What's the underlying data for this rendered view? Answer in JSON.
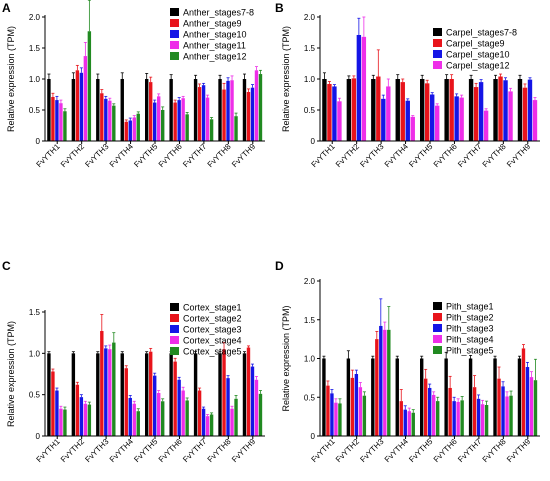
{
  "figure": {
    "categories": [
      "FvYTH1",
      "FvYTH2",
      "FvYTH3",
      "FvYTH4",
      "FvYTH5",
      "FvYTH6",
      "FvYTH7",
      "FvYTH8",
      "FvYTH9"
    ],
    "colors": [
      "#000000",
      "#e8141b",
      "#1515e6",
      "#ee2ee8",
      "#218a21"
    ]
  },
  "chart_data": [
    {
      "panel": "A",
      "type": "bar",
      "ylabel": "Relative expression (TPM)",
      "ylim": [
        0,
        2.0
      ],
      "yticks": [
        0,
        0.5,
        1.0,
        1.5,
        2.0
      ],
      "ytick_labels": [
        "0",
        "0.5",
        "1.0",
        "1.5",
        "2.0"
      ],
      "legend": "top-right",
      "categories": [
        "FvYTH1",
        "FvYTH2",
        "FvYTH3",
        "FvYTH4",
        "FvYTH5",
        "FvYTH6",
        "FvYTH7",
        "FvYTH8",
        "FvYTH9"
      ],
      "series": [
        {
          "name": "Anther_stages7-8",
          "values": [
            1.0,
            1.0,
            1.0,
            1.0,
            1.0,
            1.0,
            1.0,
            1.0,
            1.0
          ],
          "errors": [
            0.08,
            0.1,
            0.08,
            0.1,
            0.09,
            0.07,
            0.06,
            0.06,
            0.08
          ]
        },
        {
          "name": "Anther_stage9",
          "values": [
            0.71,
            1.14,
            0.77,
            0.31,
            0.95,
            0.62,
            0.87,
            0.83,
            0.79
          ],
          "errors": [
            0.06,
            0.08,
            0.06,
            0.03,
            0.08,
            0.04,
            0.05,
            0.1,
            0.05
          ]
        },
        {
          "name": "Anther_stage10",
          "values": [
            0.66,
            1.1,
            0.68,
            0.33,
            0.62,
            0.66,
            0.9,
            0.97,
            0.86
          ],
          "errors": [
            0.06,
            0.08,
            0.04,
            0.04,
            0.04,
            0.04,
            0.03,
            0.05,
            0.05
          ]
        },
        {
          "name": "Anther_stage11",
          "values": [
            0.61,
            1.37,
            0.65,
            0.38,
            0.72,
            0.69,
            0.7,
            0.98,
            1.14
          ],
          "errors": [
            0.05,
            0.22,
            0.04,
            0.03,
            0.04,
            0.03,
            0.04,
            0.07,
            0.06
          ]
        },
        {
          "name": "Anther_stage12",
          "values": [
            0.48,
            1.77,
            0.57,
            0.44,
            0.5,
            0.43,
            0.35,
            0.4,
            1.08
          ],
          "errors": [
            0.04,
            0.5,
            0.03,
            0.03,
            0.05,
            0.03,
            0.03,
            0.05,
            0.06
          ]
        }
      ]
    },
    {
      "panel": "B",
      "type": "bar",
      "ylabel": "Relative expression (TPM)",
      "ylim": [
        0,
        2.0
      ],
      "yticks": [
        0,
        0.5,
        1.0,
        1.5,
        2.0
      ],
      "ytick_labels": [
        "0",
        "0.5",
        "1.0",
        "1.5",
        "2.0"
      ],
      "legend": "top-right",
      "categories": [
        "FvYTH1",
        "FvYTH2",
        "FvYTH3",
        "FvYTH4",
        "FvYTH5",
        "FvYTH6",
        "FvYTH7",
        "FvYTH8",
        "FvYTH9"
      ],
      "series": [
        {
          "name": "Carpel_stages7-8",
          "values": [
            1.0,
            1.0,
            1.0,
            1.0,
            1.0,
            1.0,
            1.0,
            1.0,
            1.0
          ],
          "errors": [
            0.1,
            0.05,
            0.06,
            0.07,
            0.06,
            0.07,
            0.06,
            0.06,
            0.06
          ]
        },
        {
          "name": "Carpel_stage9",
          "values": [
            0.92,
            1.01,
            1.04,
            0.95,
            0.93,
            1.0,
            0.87,
            1.04,
            0.86
          ],
          "errors": [
            0.04,
            0.04,
            0.43,
            0.05,
            0.05,
            0.07,
            0.06,
            0.04,
            0.06
          ]
        },
        {
          "name": "Carpel_stage10",
          "values": [
            0.88,
            1.71,
            0.68,
            0.65,
            0.75,
            0.72,
            0.95,
            0.98,
            0.99
          ],
          "errors": [
            0.03,
            0.27,
            0.06,
            0.03,
            0.03,
            0.04,
            0.04,
            0.04,
            0.03
          ]
        },
        {
          "name": "Carpel_stage12",
          "values": [
            0.64,
            1.68,
            0.88,
            0.39,
            0.57,
            0.7,
            0.49,
            0.8,
            0.66
          ],
          "errors": [
            0.05,
            0.32,
            0.12,
            0.02,
            0.03,
            0.04,
            0.03,
            0.05,
            0.04
          ]
        }
      ]
    },
    {
      "panel": "C",
      "type": "bar",
      "ylabel": "Relative expression (TPM)",
      "ylim": [
        0,
        1.5
      ],
      "yticks": [
        0,
        0.5,
        1.0,
        1.5
      ],
      "ytick_labels": [
        "0",
        "0.5",
        "1.0",
        "1.5"
      ],
      "legend": "top-right",
      "categories": [
        "FvYTH1",
        "FvYTH2",
        "FvYTH3",
        "FvYTH4",
        "FvYTH5",
        "FvYTH6",
        "FvYTH7",
        "FvYTH8",
        "FvYTH9"
      ],
      "series": [
        {
          "name": "Cortex_stage1",
          "values": [
            1.0,
            1.0,
            1.0,
            1.0,
            1.0,
            1.0,
            1.0,
            1.0,
            1.0
          ],
          "errors": [
            0.02,
            0.02,
            0.02,
            0.02,
            0.02,
            0.02,
            0.02,
            0.02,
            0.02
          ]
        },
        {
          "name": "Cortex_stage2",
          "values": [
            0.78,
            0.62,
            1.27,
            0.82,
            1.02,
            0.9,
            0.55,
            1.05,
            1.07
          ],
          "errors": [
            0.03,
            0.03,
            0.2,
            0.03,
            0.04,
            0.04,
            0.03,
            0.08,
            0.02
          ]
        },
        {
          "name": "Cortex_stage3",
          "values": [
            0.55,
            0.47,
            1.06,
            0.46,
            0.73,
            0.68,
            0.33,
            0.7,
            0.84
          ],
          "errors": [
            0.03,
            0.03,
            0.03,
            0.03,
            0.03,
            0.03,
            0.02,
            0.03,
            0.03
          ]
        },
        {
          "name": "Cortex_stage4",
          "values": [
            0.33,
            0.39,
            1.05,
            0.39,
            0.52,
            0.55,
            0.24,
            0.33,
            0.68
          ],
          "errors": [
            0.03,
            0.03,
            0.05,
            0.03,
            0.03,
            0.04,
            0.02,
            0.03,
            0.04
          ]
        },
        {
          "name": "Cortex_stage5",
          "values": [
            0.32,
            0.38,
            1.13,
            0.3,
            0.42,
            0.43,
            0.26,
            0.45,
            0.51
          ],
          "errors": [
            0.03,
            0.03,
            0.12,
            0.03,
            0.03,
            0.03,
            0.02,
            0.04,
            0.04
          ]
        }
      ]
    },
    {
      "panel": "D",
      "type": "bar",
      "ylabel": "Relative expression (TPM)",
      "ylim": [
        0,
        2.0
      ],
      "yticks": [
        0,
        0.5,
        1.0,
        1.5,
        2.0
      ],
      "ytick_labels": [
        "0",
        "0.5",
        "1.0",
        "1.5",
        "2.0"
      ],
      "legend": "top-right",
      "categories": [
        "FvYTH1",
        "FvYTH2",
        "FvYTH3",
        "FvYTH4",
        "FvYTH5",
        "FvYTH6",
        "FvYTH7",
        "FvYTH8",
        "FvYTH9"
      ],
      "series": [
        {
          "name": "Pith_stage1",
          "values": [
            1.0,
            1.0,
            1.0,
            1.0,
            1.0,
            1.0,
            1.0,
            1.0,
            1.0
          ],
          "errors": [
            0.03,
            0.1,
            0.03,
            0.03,
            0.03,
            0.08,
            0.04,
            0.03,
            0.03
          ]
        },
        {
          "name": "Pith_stage2",
          "values": [
            0.65,
            0.75,
            1.25,
            0.45,
            0.74,
            0.62,
            0.63,
            0.74,
            1.13
          ],
          "errors": [
            0.06,
            0.1,
            0.1,
            0.15,
            0.12,
            0.15,
            0.15,
            0.15,
            0.05
          ]
        },
        {
          "name": "Pith_stage3",
          "values": [
            0.55,
            0.8,
            1.42,
            0.34,
            0.62,
            0.45,
            0.48,
            0.64,
            0.89
          ],
          "errors": [
            0.05,
            0.05,
            0.35,
            0.05,
            0.05,
            0.05,
            0.05,
            0.06,
            0.06
          ]
        },
        {
          "name": "Pith_stage4",
          "values": [
            0.43,
            0.63,
            1.37,
            0.32,
            0.53,
            0.44,
            0.41,
            0.51,
            0.76
          ],
          "errors": [
            0.05,
            0.06,
            0.1,
            0.04,
            0.04,
            0.04,
            0.05,
            0.06,
            0.07
          ]
        },
        {
          "name": "Pith_stage5",
          "values": [
            0.42,
            0.52,
            1.37,
            0.3,
            0.45,
            0.46,
            0.4,
            0.52,
            0.72
          ],
          "errors": [
            0.06,
            0.05,
            0.3,
            0.04,
            0.05,
            0.05,
            0.05,
            0.06,
            0.27
          ]
        }
      ]
    }
  ]
}
